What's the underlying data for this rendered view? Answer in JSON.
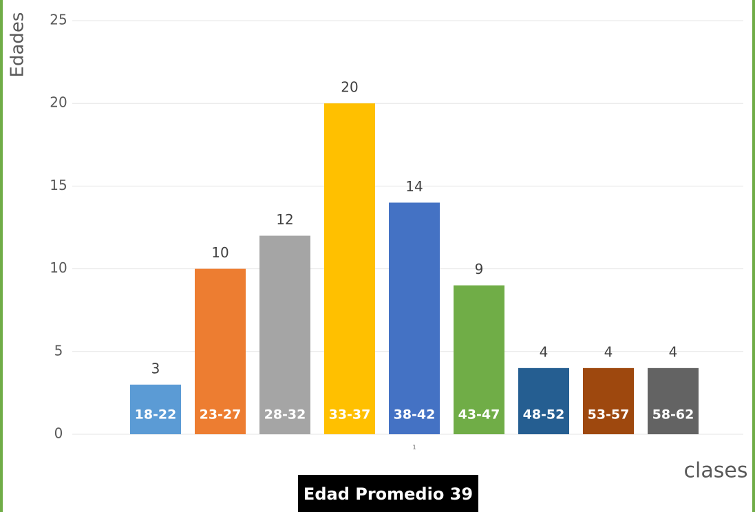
{
  "chart_data": {
    "type": "bar",
    "y_label": "Edades",
    "x_label": "clases",
    "annotation": "Edad Promedio 39",
    "categories": [
      "1"
    ],
    "series": [
      {
        "name": "18-22",
        "color": "#5b9bd5",
        "values": [
          3
        ]
      },
      {
        "name": "23-27",
        "color": "#ed7d31",
        "values": [
          10
        ]
      },
      {
        "name": "28-32",
        "color": "#a5a5a5",
        "values": [
          12
        ]
      },
      {
        "name": "33-37",
        "color": "#ffc000",
        "values": [
          20
        ]
      },
      {
        "name": "38-42",
        "color": "#4472c4",
        "values": [
          14
        ]
      },
      {
        "name": "43-47",
        "color": "#70ad47",
        "values": [
          9
        ]
      },
      {
        "name": "48-52",
        "color": "#255e91",
        "values": [
          4
        ]
      },
      {
        "name": "53-57",
        "color": "#9e480e",
        "values": [
          4
        ]
      },
      {
        "name": "58-62",
        "color": "#636363",
        "values": [
          4
        ]
      }
    ],
    "ylim": [
      0,
      25
    ],
    "yticks": [
      0,
      5,
      10,
      15,
      20,
      25
    ],
    "grid": true
  }
}
